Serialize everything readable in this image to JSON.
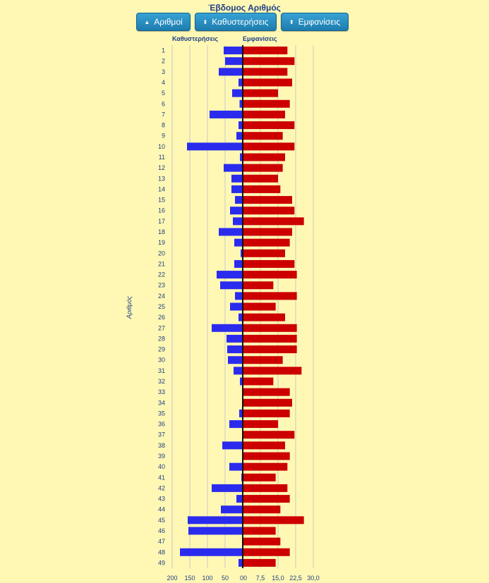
{
  "title": "Έβδομος Αριθμός",
  "buttons": {
    "numbers": "Αριθμοί",
    "delays": "Καθυστερήσεις",
    "appearances": "Εμφανίσεις"
  },
  "chart_data": {
    "type": "bar",
    "orientation": "horizontal",
    "ylabel": "Αριθμός",
    "left_axis": {
      "title": "Καθυστερήσεις",
      "ticks": [
        "200",
        "150",
        "100",
        "50",
        "0"
      ],
      "range": [
        0,
        200
      ]
    },
    "right_axis": {
      "title": "Εμφανίσεις",
      "ticks": [
        "0",
        "7,5",
        "15,0",
        "22,5",
        "30,0"
      ],
      "range": [
        0,
        30
      ]
    },
    "categories": [
      "1",
      "2",
      "3",
      "4",
      "5",
      "6",
      "7",
      "8",
      "9",
      "10",
      "11",
      "12",
      "13",
      "14",
      "15",
      "16",
      "17",
      "18",
      "19",
      "20",
      "21",
      "22",
      "23",
      "24",
      "25",
      "26",
      "27",
      "28",
      "29",
      "30",
      "31",
      "32",
      "33",
      "34",
      "35",
      "36",
      "37",
      "38",
      "39",
      "40",
      "41",
      "42",
      "43",
      "44",
      "45",
      "46",
      "47",
      "48",
      "49"
    ],
    "series": [
      {
        "name": "Καθυστερήσεις",
        "color": "#2b2bee",
        "values": [
          54,
          50,
          68,
          12,
          30,
          9,
          94,
          12,
          18,
          158,
          8,
          54,
          32,
          32,
          22,
          36,
          28,
          68,
          24,
          6,
          24,
          74,
          64,
          22,
          36,
          12,
          88,
          46,
          44,
          42,
          26,
          8,
          2,
          2,
          10,
          38,
          2,
          58,
          2,
          38,
          4,
          88,
          18,
          62,
          156,
          154,
          2,
          178,
          12
        ]
      },
      {
        "name": "Εμφανίσεις",
        "color": "#cc0000",
        "values": [
          19,
          22,
          19,
          21,
          15,
          20,
          18,
          22,
          17,
          22,
          18,
          17,
          15,
          16,
          21,
          22,
          26,
          21,
          20,
          18,
          22,
          23,
          13,
          23,
          14,
          18,
          23,
          23,
          23,
          17,
          25,
          13,
          20,
          21,
          20,
          15,
          22,
          18,
          20,
          19,
          14,
          19,
          20,
          16,
          26,
          14,
          16,
          20,
          14
        ]
      }
    ],
    "grid": true
  }
}
